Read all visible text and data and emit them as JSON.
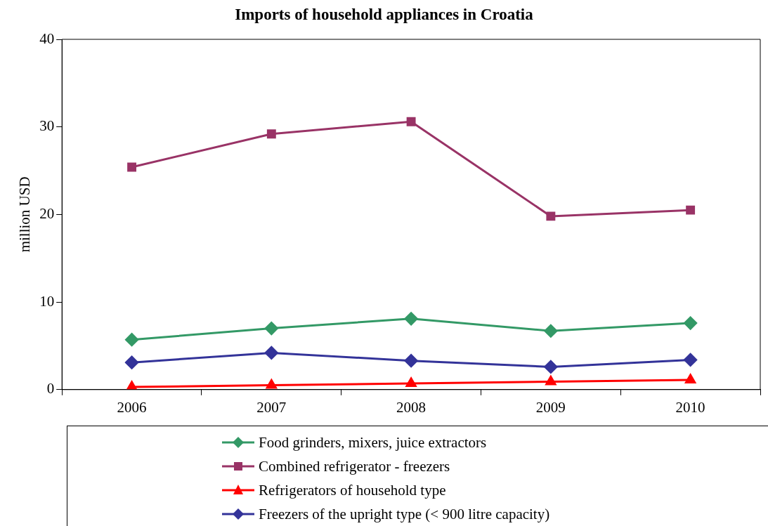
{
  "chart_data": {
    "type": "line",
    "title": "Imports of household appliances in Croatia",
    "ylabel": "million USD",
    "categories": [
      "2006",
      "2007",
      "2008",
      "2009",
      "2010"
    ],
    "series": [
      {
        "name": "Food grinders, mixers, juice extractors",
        "color": "#339966",
        "marker": "diamond",
        "values": [
          5.7,
          7.0,
          8.1,
          6.7,
          7.6
        ]
      },
      {
        "name": "Combined refrigerator - freezers",
        "color": "#993366",
        "marker": "square",
        "values": [
          25.4,
          29.2,
          30.6,
          19.8,
          20.5
        ]
      },
      {
        "name": "Refrigerators of household type",
        "color": "#ff0000",
        "marker": "triangle",
        "values": [
          0.3,
          0.5,
          0.7,
          0.9,
          1.1
        ]
      },
      {
        "name": "Freezers of the upright type (< 900 litre capacity)",
        "color": "#333399",
        "marker": "diamond",
        "values": [
          3.1,
          4.2,
          3.3,
          2.6,
          3.4
        ]
      }
    ],
    "ylim": [
      0,
      40
    ],
    "yticks": [
      0,
      10,
      20,
      30,
      40
    ],
    "grid": false,
    "legend": "bottom",
    "line_style": "solid"
  }
}
